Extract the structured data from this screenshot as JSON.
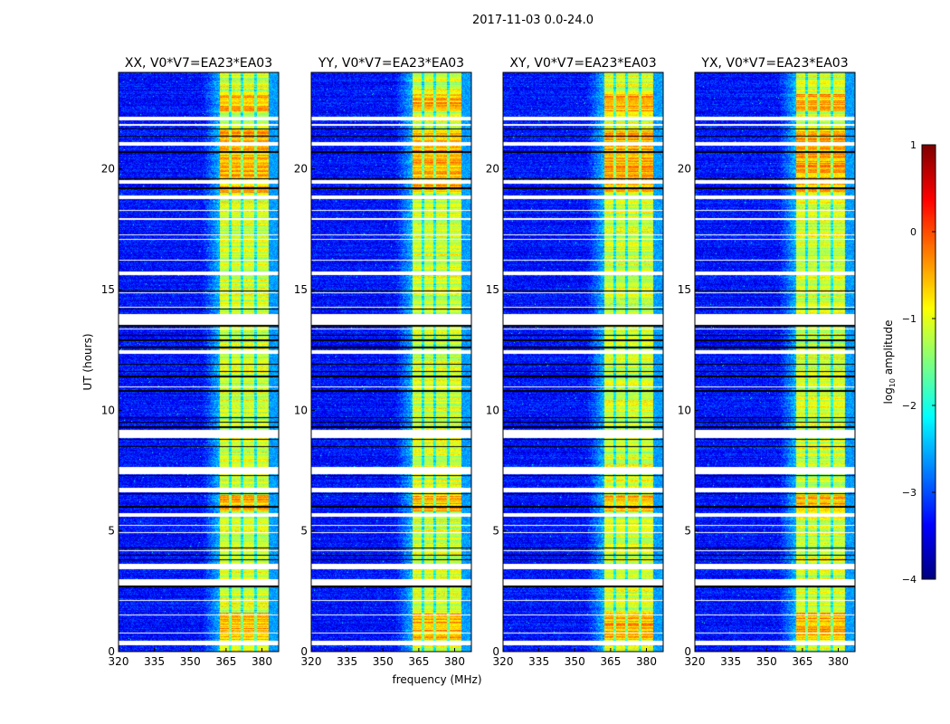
{
  "chart_data": {
    "type": "heatmap",
    "title": "2017-11-03 0.0-24.0",
    "xlabel": "frequency (MHz)",
    "ylabel": "UT (hours)",
    "xlim": [
      320,
      387
    ],
    "ylim": [
      0,
      24
    ],
    "xticks": [
      320,
      335,
      350,
      365,
      380
    ],
    "yticks": [
      0,
      5,
      10,
      15,
      20
    ],
    "panels": [
      {
        "title": "XX, V0*V7=EA23*EA03",
        "seed": 11
      },
      {
        "title": "YY, V0*V7=EA23*EA03",
        "seed": 23
      },
      {
        "title": "XY, V0*V7=EA23*EA03",
        "seed": 37
      },
      {
        "title": "YX, V0*V7=EA23*EA03",
        "seed": 51
      }
    ],
    "colorbar": {
      "label": "log10 amplitude",
      "label_main": "log",
      "label_sub": "10",
      "label_rest": " amplitude",
      "range": [
        -4,
        1
      ],
      "ticks": [
        "1",
        "0",
        "−1",
        "−2",
        "−3",
        "−4"
      ],
      "tick_values": [
        1,
        0,
        -1,
        -2,
        -3,
        -4
      ],
      "colormap": "jet"
    },
    "signal": {
      "background_level": -3.3,
      "band_mhz": [
        362.3,
        383.0
      ],
      "band_level": -1.1,
      "band_gaps_mhz": [
        366.8,
        371.7,
        377.4
      ],
      "edge_level": -2.6,
      "strong_hours": [
        [
          22.4,
          23.1
        ],
        [
          19.0,
          21.6
        ],
        [
          0.5,
          1.6
        ],
        [
          5.8,
          6.5
        ]
      ]
    },
    "flagged_white_hours": [
      [
        22.0,
        22.15
      ],
      [
        21.8,
        21.85
      ],
      [
        20.95,
        21.1
      ],
      [
        19.4,
        19.55
      ],
      [
        18.75,
        18.9
      ],
      [
        18.25,
        18.3
      ],
      [
        17.9,
        17.95
      ],
      [
        17.25,
        17.3
      ],
      [
        17.05,
        17.1
      ],
      [
        16.2,
        16.25
      ],
      [
        15.6,
        15.75
      ],
      [
        14.85,
        14.9
      ],
      [
        14.25,
        14.3
      ],
      [
        13.55,
        14.0
      ],
      [
        13.35,
        13.4
      ],
      [
        12.35,
        12.5
      ],
      [
        10.95,
        11.0
      ],
      [
        8.85,
        9.2
      ],
      [
        7.35,
        7.65
      ],
      [
        6.6,
        6.8
      ],
      [
        5.6,
        5.75
      ],
      [
        5.2,
        5.25
      ],
      [
        4.9,
        4.95
      ],
      [
        4.15,
        4.2
      ],
      [
        3.4,
        3.65
      ],
      [
        2.75,
        3.0
      ],
      [
        2.1,
        2.15
      ],
      [
        1.5,
        1.55
      ],
      [
        0.75,
        0.8
      ],
      [
        0.25,
        0.45
      ]
    ],
    "flagged_black_hours": [
      21.65,
      21.35,
      20.7,
      19.6,
      19.2,
      14.95,
      14.2,
      13.5,
      13.1,
      12.9,
      12.6,
      11.9,
      11.6,
      11.4,
      10.8,
      9.7,
      9.5,
      9.3,
      8.8,
      8.5,
      7.3,
      6.55,
      6.0,
      4.3,
      4.0,
      3.8,
      2.7
    ]
  }
}
